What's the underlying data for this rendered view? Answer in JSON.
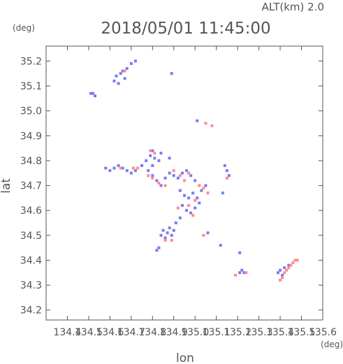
{
  "header": {
    "altitude": "ALT(km) 2.0",
    "timestamp": "2018/05/01 11:45:00"
  },
  "colors": {
    "axis": "#555555",
    "positive": "#ff8c8c",
    "negative": "#7b7bf0"
  },
  "chart_data": {
    "type": "scatter",
    "title": "",
    "xlabel": "lon",
    "ylabel": "lat",
    "x_unit": "(deg)",
    "y_unit": "(deg)",
    "xlim": [
      134.3,
      135.6
    ],
    "ylim": [
      34.16,
      35.26
    ],
    "xticks": [
      "134.4",
      "134.5",
      "134.6",
      "134.7",
      "134.8",
      "134.9",
      "135.0",
      "135.1",
      "135.2",
      "135.3",
      "135.4",
      "135.5",
      "135.6"
    ],
    "yticks": [
      "35.2",
      "35.1",
      "35.0",
      "34.9",
      "34.8",
      "34.7",
      "34.6",
      "34.5",
      "34.4",
      "34.3",
      "34.2"
    ],
    "grid": false,
    "series": [
      {
        "color": "#7b7bf0",
        "points": [
          [
            134.52,
            35.07
          ],
          [
            134.53,
            35.06
          ],
          [
            134.51,
            35.07
          ],
          [
            134.63,
            35.14
          ],
          [
            134.65,
            35.15
          ],
          [
            134.67,
            35.13
          ],
          [
            134.64,
            35.11
          ],
          [
            134.66,
            35.16
          ],
          [
            134.68,
            35.17
          ],
          [
            134.62,
            35.12
          ],
          [
            134.7,
            35.19
          ],
          [
            134.72,
            35.2
          ],
          [
            134.89,
            35.15
          ],
          [
            134.58,
            34.77
          ],
          [
            134.6,
            34.76
          ],
          [
            134.62,
            34.77
          ],
          [
            134.64,
            34.78
          ],
          [
            134.66,
            34.77
          ],
          [
            134.68,
            34.76
          ],
          [
            134.7,
            34.75
          ],
          [
            134.72,
            34.76
          ],
          [
            134.75,
            34.78
          ],
          [
            134.77,
            34.8
          ],
          [
            134.79,
            34.82
          ],
          [
            134.81,
            34.81
          ],
          [
            134.83,
            34.8
          ],
          [
            134.8,
            34.78
          ],
          [
            134.78,
            34.76
          ],
          [
            134.8,
            34.74
          ],
          [
            134.82,
            34.72
          ],
          [
            134.84,
            34.7
          ],
          [
            134.86,
            34.73
          ],
          [
            134.88,
            34.75
          ],
          [
            134.9,
            34.74
          ],
          [
            134.92,
            34.73
          ],
          [
            134.94,
            34.75
          ],
          [
            134.96,
            34.76
          ],
          [
            134.98,
            34.74
          ],
          [
            135.0,
            34.72
          ],
          [
            134.93,
            34.68
          ],
          [
            134.95,
            34.66
          ],
          [
            134.97,
            34.65
          ],
          [
            134.99,
            34.67
          ],
          [
            135.01,
            34.65
          ],
          [
            135.03,
            34.68
          ],
          [
            135.05,
            34.7
          ],
          [
            134.94,
            34.62
          ],
          [
            134.96,
            34.6
          ],
          [
            134.98,
            34.59
          ],
          [
            135.0,
            34.61
          ],
          [
            135.02,
            34.63
          ],
          [
            134.85,
            34.52
          ],
          [
            134.87,
            34.51
          ],
          [
            134.89,
            34.5
          ],
          [
            134.86,
            34.49
          ],
          [
            134.88,
            34.53
          ],
          [
            134.9,
            34.52
          ],
          [
            134.84,
            34.5
          ],
          [
            134.82,
            34.44
          ],
          [
            134.83,
            34.45
          ],
          [
            134.91,
            34.55
          ],
          [
            134.93,
            34.57
          ],
          [
            135.06,
            34.51
          ],
          [
            135.14,
            34.78
          ],
          [
            135.15,
            34.76
          ],
          [
            135.16,
            34.74
          ],
          [
            135.13,
            34.67
          ],
          [
            135.12,
            34.46
          ],
          [
            135.21,
            34.43
          ],
          [
            135.22,
            34.36
          ],
          [
            135.23,
            34.35
          ],
          [
            135.21,
            34.35
          ],
          [
            135.4,
            34.36
          ],
          [
            135.42,
            34.37
          ],
          [
            135.44,
            34.38
          ],
          [
            135.39,
            34.35
          ],
          [
            135.41,
            34.34
          ],
          [
            135.01,
            34.96
          ],
          [
            134.8,
            34.84
          ],
          [
            134.84,
            34.83
          ],
          [
            134.88,
            34.81
          ]
        ]
      },
      {
        "color": "#ff8c8c",
        "points": [
          [
            134.67,
            35.16
          ],
          [
            134.79,
            34.84
          ],
          [
            134.81,
            34.83
          ],
          [
            134.65,
            34.77
          ],
          [
            134.71,
            34.77
          ],
          [
            134.73,
            34.77
          ],
          [
            134.78,
            34.74
          ],
          [
            134.8,
            34.73
          ],
          [
            134.83,
            34.71
          ],
          [
            134.86,
            34.7
          ],
          [
            134.9,
            34.76
          ],
          [
            134.93,
            34.74
          ],
          [
            134.95,
            34.72
          ],
          [
            134.97,
            34.75
          ],
          [
            135.02,
            34.7
          ],
          [
            135.04,
            34.69
          ],
          [
            135.06,
            34.67
          ],
          [
            135.0,
            34.64
          ],
          [
            134.92,
            34.61
          ],
          [
            134.97,
            34.62
          ],
          [
            134.99,
            34.58
          ],
          [
            134.86,
            34.48
          ],
          [
            134.89,
            34.48
          ],
          [
            135.05,
            34.95
          ],
          [
            135.08,
            34.94
          ],
          [
            135.15,
            34.73
          ],
          [
            135.19,
            34.34
          ],
          [
            135.24,
            34.35
          ],
          [
            135.04,
            34.5
          ],
          [
            135.43,
            34.36
          ],
          [
            135.44,
            34.37
          ],
          [
            135.45,
            34.38
          ],
          [
            135.46,
            34.39
          ],
          [
            135.47,
            34.4
          ],
          [
            135.48,
            34.4
          ],
          [
            135.42,
            34.35
          ],
          [
            135.41,
            34.33
          ],
          [
            135.4,
            34.32
          ]
        ]
      }
    ]
  }
}
